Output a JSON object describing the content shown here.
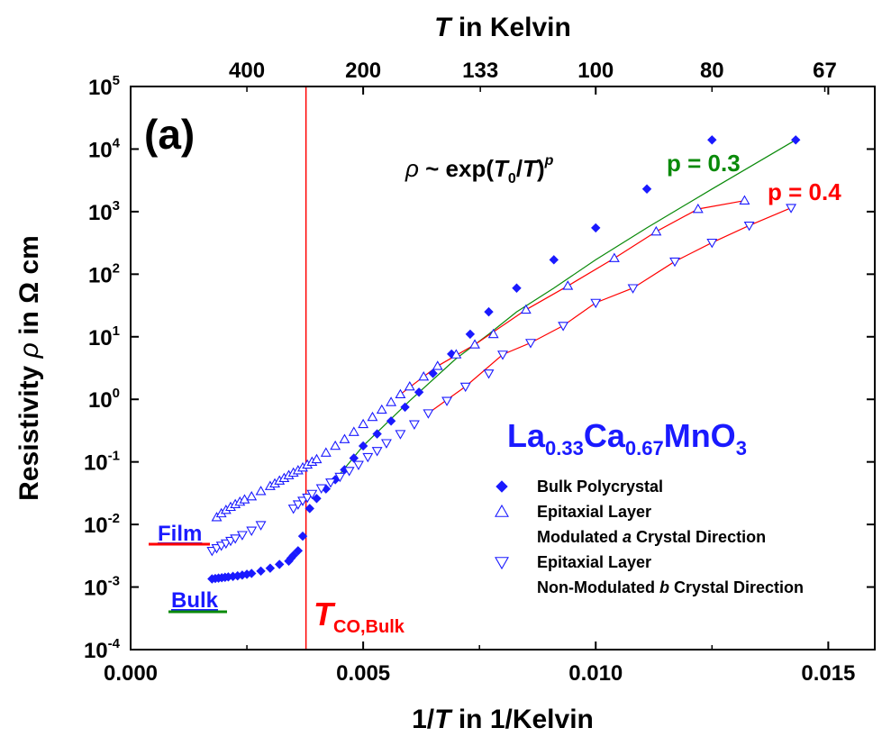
{
  "chart_data": {
    "type": "scatter",
    "panel_label": "(a)",
    "x_axis": {
      "label_parts": [
        "1/",
        "T",
        " in 1/Kelvin"
      ],
      "range": [
        0.0,
        0.016
      ],
      "scale": "linear",
      "ticks": [
        0.0,
        0.005,
        0.01,
        0.015
      ],
      "tick_labels": [
        "0.000",
        "0.005",
        "0.010",
        "0.015"
      ]
    },
    "y_axis": {
      "label_parts": [
        "Resistivity ",
        "ρ",
        " in Ω cm"
      ],
      "range": [
        0.0001,
        100000
      ],
      "scale": "log",
      "ticks": [
        0.0001,
        0.001,
        0.01,
        0.1,
        1,
        10,
        100,
        1000,
        10000,
        100000
      ],
      "tick_labels": [
        {
          "base": "10",
          "exp": "-4"
        },
        {
          "base": "10",
          "exp": "-3"
        },
        {
          "base": "10",
          "exp": "-2"
        },
        {
          "base": "10",
          "exp": "-1"
        },
        {
          "base": "10",
          "exp": "0"
        },
        {
          "base": "10",
          "exp": "1"
        },
        {
          "base": "10",
          "exp": "2"
        },
        {
          "base": "10",
          "exp": "3"
        },
        {
          "base": "10",
          "exp": "4"
        },
        {
          "base": "10",
          "exp": "5"
        }
      ]
    },
    "top_axis": {
      "label_parts": [
        "T",
        " in Kelvin"
      ],
      "ticks": [
        400,
        200,
        133,
        100,
        80,
        67
      ],
      "tick_labels": [
        "400",
        "200",
        "133",
        "100",
        "80",
        "67"
      ]
    },
    "grid": false,
    "vline": {
      "x": 0.00377,
      "color": "#ff0000",
      "label": "T",
      "label_sub": "CO,Bulk"
    },
    "formula": {
      "rho": "ρ",
      "tilde": "~",
      "exp": "exp(",
      "T0": "T",
      "sub0": "0",
      "slash": "/",
      "T": "T",
      "close": ")",
      "p": "p"
    },
    "fit_labels": [
      {
        "text": "p = 0.3",
        "color": "#0a8a0a"
      },
      {
        "text": "p = 0.4",
        "color": "#ff0000"
      }
    ],
    "compound": {
      "parts": [
        "La",
        "0.33",
        "Ca",
        "0.67",
        "MnO",
        "3"
      ],
      "color": "#1a1aff"
    },
    "side_labels": [
      {
        "text": "Film",
        "underline_color": "#ff0000"
      },
      {
        "text": "Bulk",
        "underline_color": "#0a8a0a"
      }
    ],
    "legend": {
      "position": "lower-right",
      "entries": [
        {
          "marker": "diamond-filled",
          "lines": [
            [
              "Bulk Polycrystal"
            ]
          ]
        },
        {
          "marker": "triangle-up-open",
          "lines": [
            [
              "Epitaxial Layer"
            ],
            [
              "Modulated ",
              "a",
              " Crystal Direction"
            ]
          ]
        },
        {
          "marker": "triangle-down-open",
          "lines": [
            [
              "Epitaxial Layer"
            ],
            [
              "Non-Modulated ",
              "b",
              " Crystal Direction"
            ]
          ]
        }
      ]
    },
    "series": [
      {
        "name": "Bulk Polycrystal",
        "marker": "diamond-filled",
        "color": "#1a1aff",
        "x": [
          0.00175,
          0.00182,
          0.00189,
          0.00196,
          0.00203,
          0.0021,
          0.0022,
          0.0023,
          0.0024,
          0.0025,
          0.0026,
          0.0028,
          0.003,
          0.0032,
          0.0034,
          0.00345,
          0.0035,
          0.0036,
          0.0037,
          0.00385,
          0.004,
          0.0042,
          0.0044,
          0.0046,
          0.0048,
          0.005,
          0.0053,
          0.0056,
          0.0059,
          0.0062,
          0.0065,
          0.0069,
          0.0073,
          0.0077,
          0.0083,
          0.0091,
          0.01,
          0.0111,
          0.0125,
          0.0143
        ],
        "y": [
          0.00135,
          0.00137,
          0.00139,
          0.00141,
          0.00143,
          0.00145,
          0.00148,
          0.00151,
          0.00155,
          0.0016,
          0.00165,
          0.0018,
          0.002,
          0.0023,
          0.0026,
          0.0029,
          0.0032,
          0.0038,
          0.0065,
          0.018,
          0.026,
          0.037,
          0.052,
          0.075,
          0.115,
          0.18,
          0.28,
          0.45,
          0.75,
          1.3,
          2.6,
          5.3,
          11.0,
          25.0,
          60.0,
          170.0,
          550.0,
          2300.0,
          14000.0,
          14000.0
        ]
      },
      {
        "name": "Epitaxial Layer Modulated a Crystal Direction",
        "marker": "triangle-up-open",
        "color": "#1a1aff",
        "x": [
          0.00185,
          0.00195,
          0.00205,
          0.00215,
          0.00225,
          0.00235,
          0.00245,
          0.0026,
          0.0028,
          0.003,
          0.0031,
          0.0032,
          0.0033,
          0.0034,
          0.0035,
          0.0036,
          0.0037,
          0.0038,
          0.0039,
          0.004,
          0.0042,
          0.0044,
          0.0046,
          0.0048,
          0.005,
          0.0052,
          0.0054,
          0.0056,
          0.0058,
          0.006,
          0.0063,
          0.0066,
          0.007,
          0.0074,
          0.0078,
          0.0085,
          0.0094,
          0.0104,
          0.0113,
          0.0122,
          0.0132
        ],
        "y": [
          0.013,
          0.015,
          0.017,
          0.019,
          0.021,
          0.023,
          0.025,
          0.028,
          0.034,
          0.041,
          0.045,
          0.05,
          0.055,
          0.061,
          0.067,
          0.073,
          0.081,
          0.09,
          0.1,
          0.11,
          0.14,
          0.18,
          0.23,
          0.3,
          0.4,
          0.52,
          0.68,
          0.9,
          1.2,
          1.6,
          2.3,
          3.4,
          5.2,
          7.5,
          11.0,
          27.0,
          65.0,
          180.0,
          480.0,
          1100.0,
          1500.0
        ]
      },
      {
        "name": "Epitaxial Layer Non-Modulated b Crystal Direction",
        "marker": "triangle-down-open",
        "color": "#1a1aff",
        "x": [
          0.00175,
          0.00185,
          0.00195,
          0.00205,
          0.00215,
          0.00225,
          0.0024,
          0.0026,
          0.0028,
          0.0035,
          0.0036,
          0.0037,
          0.0038,
          0.0039,
          0.0041,
          0.0043,
          0.0045,
          0.0047,
          0.0049,
          0.0051,
          0.0053,
          0.0055,
          0.0058,
          0.0061,
          0.0064,
          0.0068,
          0.0072,
          0.0077,
          0.008,
          0.0086,
          0.0093,
          0.01,
          0.0108,
          0.0117,
          0.0125,
          0.0133,
          0.0142
        ],
        "y": [
          0.0038,
          0.0042,
          0.0046,
          0.005,
          0.0055,
          0.006,
          0.0068,
          0.008,
          0.0098,
          0.018,
          0.021,
          0.024,
          0.027,
          0.031,
          0.038,
          0.047,
          0.058,
          0.072,
          0.09,
          0.12,
          0.15,
          0.2,
          0.28,
          0.4,
          0.6,
          0.95,
          1.6,
          2.6,
          5.2,
          8.0,
          15.0,
          35.0,
          60.0,
          160.0,
          320.0,
          600.0,
          1150.0
        ]
      }
    ],
    "fit_lines": [
      {
        "series": "Bulk Polycrystal",
        "color": "#0a8a0a",
        "x": [
          0.0044,
          0.005,
          0.006,
          0.007,
          0.0077,
          0.0083,
          0.0091,
          0.01,
          0.0111,
          0.0125,
          0.0143
        ],
        "y": [
          0.052,
          0.18,
          0.95,
          4.5,
          11.0,
          25.0,
          60.0,
          170.0,
          550.0,
          2300.0,
          14000.0
        ]
      },
      {
        "series": "Epitaxial Layer Modulated a Crystal Direction",
        "color": "#ff0000",
        "x": [
          0.0058,
          0.0066,
          0.0074,
          0.0085,
          0.0094,
          0.0104,
          0.0113,
          0.0122,
          0.0132
        ],
        "y": [
          1.2,
          3.4,
          7.5,
          27.0,
          65.0,
          180.0,
          480.0,
          1100.0,
          1500.0
        ]
      },
      {
        "series": "Epitaxial Layer Non-Modulated b Crystal Direction",
        "color": "#ff0000",
        "x": [
          0.0064,
          0.0072,
          0.008,
          0.0086,
          0.0093,
          0.01,
          0.0108,
          0.0117,
          0.0125,
          0.0133,
          0.0142
        ],
        "y": [
          0.6,
          1.6,
          5.2,
          8.0,
          15.0,
          35.0,
          60.0,
          160.0,
          320.0,
          600.0,
          1150.0
        ]
      }
    ]
  }
}
